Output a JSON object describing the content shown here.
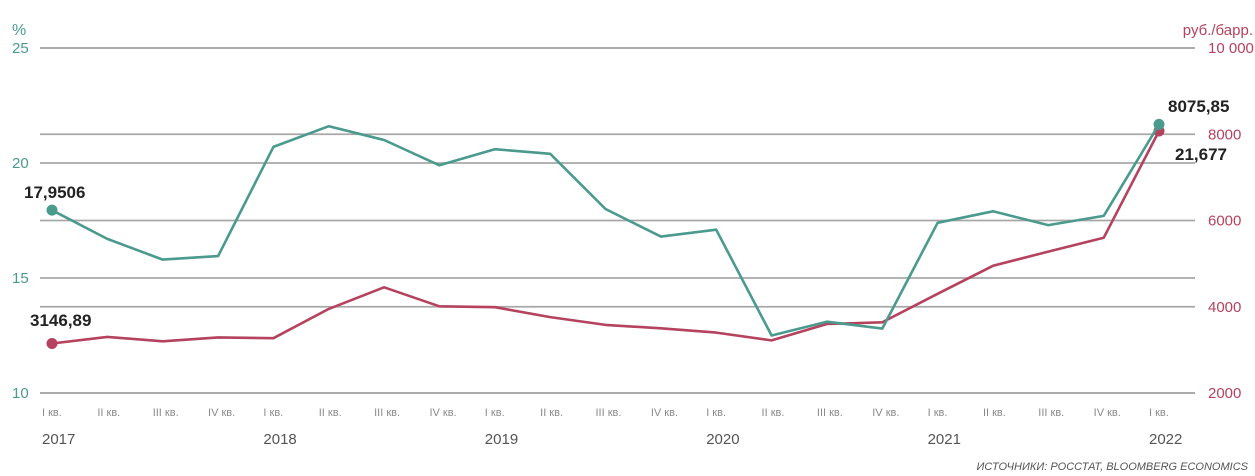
{
  "chart_data": {
    "type": "line",
    "left_unit": "%",
    "right_unit": "руб./барр.",
    "left_ylim": [
      10,
      25
    ],
    "right_ylim": [
      2000,
      10000
    ],
    "left_ticks": [
      "10",
      "15",
      "20",
      "25"
    ],
    "right_ticks": [
      "2000",
      "4000",
      "6000",
      "8000",
      "10 000"
    ],
    "categories": [
      "I кв.",
      "II кв.",
      "III кв.",
      "IV кв.",
      "I кв.",
      "II кв.",
      "III кв.",
      "IV кв.",
      "I кв.",
      "II кв.",
      "III кв.",
      "IV кв.",
      "I кв.",
      "II кв.",
      "III кв.",
      "IV кв.",
      "I кв.",
      "II кв.",
      "III кв.",
      "IV кв.",
      "I кв."
    ],
    "years": [
      {
        "label": "2017",
        "index": 0
      },
      {
        "label": "2018",
        "index": 4
      },
      {
        "label": "2019",
        "index": 8
      },
      {
        "label": "2020",
        "index": 12
      },
      {
        "label": "2021",
        "index": 16
      },
      {
        "label": "2022",
        "index": 20
      }
    ],
    "series": [
      {
        "axis": "left",
        "color": "#4a9a8e",
        "values": [
          17.95,
          16.7,
          15.8,
          15.95,
          20.7,
          21.6,
          21.0,
          19.9,
          20.6,
          20.4,
          18.0,
          16.8,
          17.1,
          12.5,
          13.1,
          12.8,
          17.4,
          17.9,
          17.3,
          17.7,
          21.677
        ],
        "start_label": "17,9506",
        "end_label": "21,677"
      },
      {
        "axis": "right",
        "color": "#b5425e",
        "values": [
          3146.89,
          3300,
          3200,
          3290,
          3270,
          3950,
          4450,
          4010,
          3990,
          3760,
          3580,
          3500,
          3400,
          3220,
          3600,
          3640,
          4300,
          4950,
          5280,
          5600,
          8075.85
        ],
        "start_label": "3146,89",
        "end_label": "8075,85"
      }
    ]
  },
  "source": "ИСТОЧНИКИ: РОССТАТ, BLOOMBERG ECONOMICS"
}
